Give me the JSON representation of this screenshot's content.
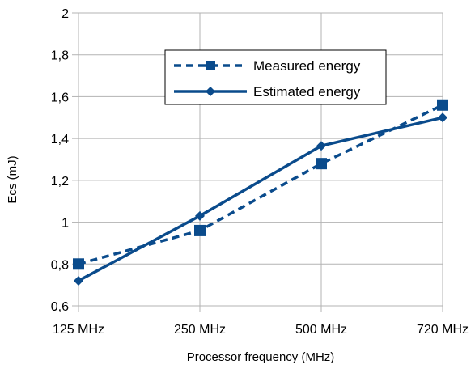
{
  "chart_data": {
    "type": "line",
    "categories": [
      "125 MHz",
      "250 MHz",
      "500 MHz",
      "720 MHz"
    ],
    "series": [
      {
        "name": "Measured energy",
        "values": [
          0.8,
          0.96,
          1.28,
          1.56
        ],
        "line_style": "dashed",
        "marker": "square",
        "color": "#0a4b8c"
      },
      {
        "name": "Estimated energy",
        "values": [
          0.72,
          1.03,
          1.365,
          1.5
        ],
        "line_style": "solid",
        "marker": "diamond",
        "color": "#0a4b8c"
      }
    ],
    "title": "",
    "xlabel": "Processor frequency (MHz)",
    "ylabel": "Ecs (mJ)",
    "ylim": [
      0.6,
      2
    ],
    "yticks": [
      "0,6",
      "0,8",
      "1",
      "1,2",
      "1,4",
      "1,6",
      "1,8",
      "2"
    ],
    "grid": "horizontal",
    "legend_position": "top-center"
  }
}
